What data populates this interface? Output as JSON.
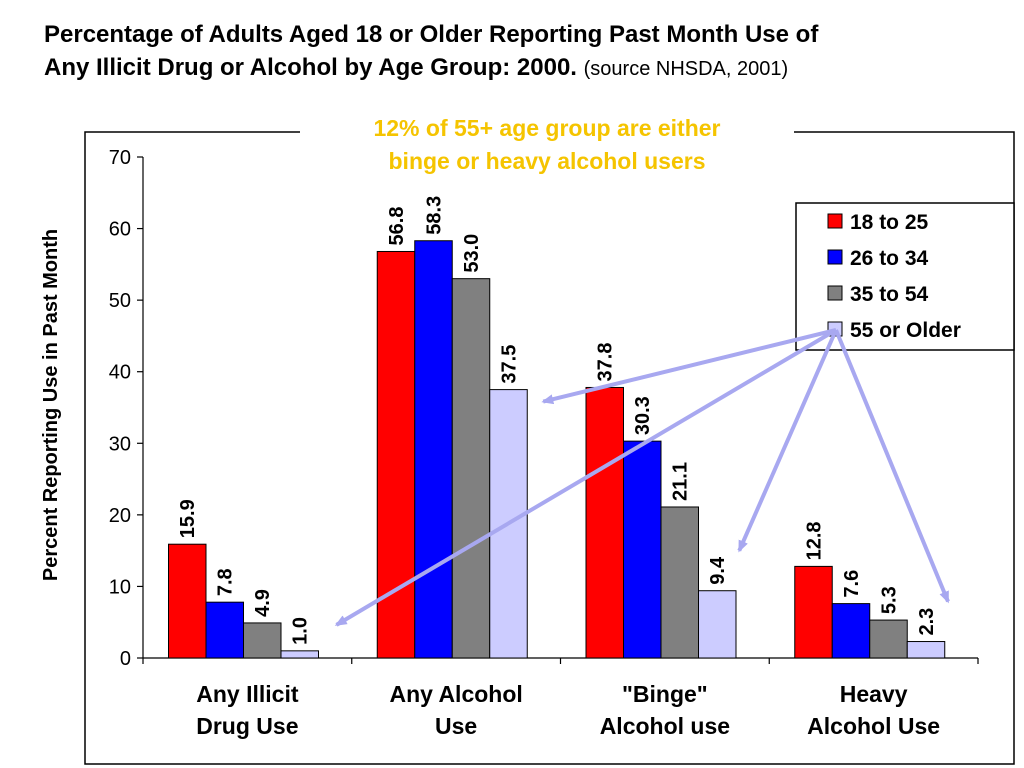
{
  "title": {
    "line1": "Percentage of Adults Aged 18 or Older Reporting Past Month Use of",
    "line2": "Any Illicit Drug or Alcohol  by Age Group:  2000.",
    "source": "(source NHSDA, 2001)"
  },
  "annotation": {
    "line1": "12% of 55+ age group are either",
    "line2": "binge or heavy alcohol users",
    "color": "#f5c400",
    "arrow_color": "#a8a8f0"
  },
  "chart_data": {
    "type": "bar",
    "title": "Percentage of Adults Aged 18 or Older Reporting Past Month Use of Any Illicit Drug or Alcohol  by Age Group:  2000.",
    "ylabel": "Percent Reporting Use in Past Month",
    "xlabel": "",
    "ylim": [
      0,
      70
    ],
    "yticks": [
      0,
      10,
      20,
      30,
      40,
      50,
      60,
      70
    ],
    "grid": false,
    "legend_position": "top-right",
    "categories": [
      [
        "Any Illicit",
        "Drug Use"
      ],
      [
        "Any Alcohol",
        "Use"
      ],
      [
        "\"Binge\"",
        "Alcohol use"
      ],
      [
        "Heavy",
        "Alcohol Use"
      ]
    ],
    "series": [
      {
        "name": "18 to 25",
        "color": "#ff0000",
        "values": [
          15.9,
          56.8,
          37.8,
          12.8
        ],
        "labels": [
          "15.9",
          "56.8",
          "37.8",
          "12.8"
        ]
      },
      {
        "name": "26 to 34",
        "color": "#0000ff",
        "values": [
          7.8,
          58.3,
          30.3,
          7.6
        ],
        "labels": [
          "7.8",
          "58.3",
          "30.3",
          "7.6"
        ]
      },
      {
        "name": "35 to 54",
        "color": "#808080",
        "values": [
          4.9,
          53.0,
          21.1,
          5.3
        ],
        "labels": [
          "4.9",
          "53.0",
          "21.1",
          "5.3"
        ]
      },
      {
        "name": "55 or Older",
        "color": "#ccccff",
        "values": [
          1.0,
          37.5,
          9.4,
          2.3
        ],
        "labels": [
          "1.0",
          "37.5",
          "9.4",
          "2.3"
        ]
      }
    ]
  }
}
